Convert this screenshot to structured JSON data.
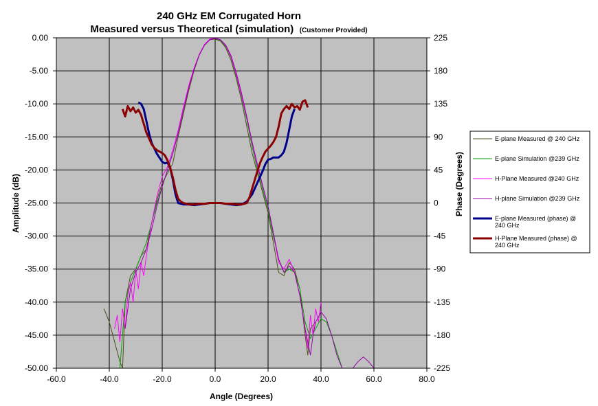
{
  "chart_data": {
    "type": "line",
    "title": "240 GHz EM Corrugated Horn",
    "subtitle_main": "Measured versus Theoretical (simulation)",
    "subtitle_note": "(Customer Provided)",
    "xlabel": "Angle (Degrees)",
    "ylabel": "Amplitude (dB)",
    "y2label": "Phase (Degrees)",
    "xlim": [
      -60,
      80
    ],
    "ylim": [
      -50,
      0
    ],
    "y2lim": [
      -225,
      225
    ],
    "x_ticks": [
      "-60.0",
      "-40.0",
      "-20.0",
      "0.0",
      "20.0",
      "40.0",
      "60.0",
      "80.0"
    ],
    "y_ticks": [
      "0.00",
      "-5.00",
      "-10.00",
      "-15.00",
      "-20.00",
      "-25.00",
      "-30.00",
      "-35.00",
      "-40.00",
      "-45.00",
      "-50.00"
    ],
    "y2_ticks": [
      "225",
      "180",
      "135",
      "90",
      "45",
      "0",
      "-45",
      "-90",
      "-135",
      "-180",
      "-225"
    ],
    "grid": true,
    "plot_bg": "#c0c0c0",
    "legend_position": "right",
    "series": [
      {
        "name": "E-plane Measured @ 240 GHz",
        "axis": "left",
        "color": "#4d4d1a",
        "width": 1,
        "x": [
          -42,
          -40,
          -38,
          -36,
          -35,
          -34,
          -32,
          -30,
          -28,
          -26,
          -24,
          -22,
          -20,
          -18,
          -16,
          -14,
          -12,
          -10,
          -8,
          -6,
          -4,
          -2,
          0,
          2,
          4,
          6,
          8,
          10,
          12,
          14,
          16,
          18,
          20,
          22,
          24,
          26,
          28,
          30,
          32,
          34,
          35,
          36,
          38
        ],
        "y": [
          -41,
          -43,
          -46,
          -49,
          -50,
          -40,
          -36,
          -35,
          -33,
          -32,
          -28,
          -24.5,
          -22,
          -20.5,
          -19,
          -15,
          -11.5,
          -8,
          -5,
          -2.6,
          -1,
          -0.3,
          -0.2,
          -0.5,
          -1.5,
          -3.4,
          -6.2,
          -9.5,
          -13.5,
          -17.5,
          -20.5,
          -23.5,
          -26.5,
          -31,
          -35.5,
          -36,
          -34,
          -35,
          -38,
          -45,
          -48,
          -44,
          -43
        ]
      },
      {
        "name": "E-plane Simulation @239 GHz",
        "axis": "left",
        "color": "#00a000",
        "width": 1,
        "x": [
          -36,
          -34,
          -32,
          -30,
          -28,
          -26,
          -24,
          -22,
          -20,
          -18,
          -16,
          -14,
          -12,
          -10,
          -8,
          -6,
          -4,
          -2,
          0,
          2,
          4,
          6,
          8,
          10,
          12,
          14,
          16,
          18,
          20,
          22,
          24,
          26,
          28,
          30,
          32,
          34,
          36,
          38,
          40,
          42,
          44,
          46,
          48
        ],
        "y": [
          -50,
          -40,
          -37,
          -35,
          -33,
          -31,
          -28,
          -25,
          -22.5,
          -20,
          -17.5,
          -14.5,
          -11,
          -7.5,
          -4.8,
          -2.6,
          -1.1,
          -0.3,
          -0.1,
          -0.4,
          -1.3,
          -3,
          -5.8,
          -9,
          -12.5,
          -16.5,
          -20,
          -23,
          -26,
          -30,
          -33.5,
          -35.5,
          -35,
          -35.5,
          -38,
          -43,
          -45.5,
          -44,
          -42.5,
          -43,
          -45,
          -47.5,
          -50
        ]
      },
      {
        "name": "H-Plane Measured @240 GHz",
        "axis": "left",
        "color": "#ff00ff",
        "width": 1,
        "x": [
          -38,
          -37,
          -36,
          -35,
          -34,
          -33,
          -32,
          -31,
          -30,
          -29,
          -28,
          -27,
          -26,
          -24,
          -22,
          -20,
          -18,
          -16,
          -14,
          -12,
          -10,
          -8,
          -6,
          -4,
          -2,
          0,
          2,
          4,
          6,
          8,
          10,
          12,
          14,
          16,
          18,
          20,
          22,
          24,
          26,
          28,
          30,
          32,
          34,
          35,
          36,
          37,
          38,
          39,
          40
        ],
        "y": [
          -44,
          -42,
          -46,
          -41,
          -44,
          -39,
          -37,
          -40,
          -35,
          -38,
          -34,
          -36,
          -33,
          -28,
          -24,
          -21,
          -19.5,
          -17,
          -14,
          -10.5,
          -7.3,
          -4.6,
          -2.5,
          -1,
          -0.2,
          0,
          -0.3,
          -1.2,
          -2.9,
          -5.6,
          -8.8,
          -12.2,
          -16,
          -19.5,
          -22.5,
          -25.5,
          -29.5,
          -34,
          -35,
          -33.5,
          -35.5,
          -39,
          -44,
          -47,
          -42,
          -45,
          -41,
          -43,
          -40
        ]
      },
      {
        "name": "H-plane Simulation @239 GHz",
        "axis": "left",
        "color": "#9900aa",
        "width": 1,
        "x": [
          -34,
          -32,
          -30,
          -28,
          -26,
          -24,
          -22,
          -20,
          -18,
          -16,
          -14,
          -12,
          -10,
          -8,
          -6,
          -4,
          -2,
          0,
          2,
          4,
          6,
          8,
          10,
          12,
          14,
          16,
          18,
          20,
          22,
          24,
          26,
          28,
          30,
          32,
          34,
          36,
          37,
          38,
          40,
          42,
          44,
          46,
          48,
          50,
          52,
          54,
          56,
          58,
          60
        ],
        "y": [
          -44,
          -38,
          -35.5,
          -34,
          -32,
          -29,
          -25.5,
          -22.5,
          -20,
          -17.5,
          -14.5,
          -11,
          -7.6,
          -4.8,
          -2.6,
          -1.1,
          -0.3,
          -0.1,
          -0.3,
          -1.1,
          -2.7,
          -5.3,
          -8.4,
          -12,
          -15.8,
          -19.2,
          -22.4,
          -25.5,
          -29.5,
          -33.5,
          -35.5,
          -34.5,
          -35.5,
          -39,
          -44,
          -48,
          -45,
          -43,
          -41.5,
          -42.5,
          -45,
          -48,
          -50,
          -50,
          -50,
          -49,
          -48.3,
          -49,
          -50
        ]
      },
      {
        "name": "E-plane Measured (phase) @ 240 GHz",
        "axis": "right",
        "color": "#00008b",
        "width": 3,
        "x": [
          -29,
          -28,
          -27,
          -26,
          -25,
          -24,
          -22,
          -20,
          -19,
          -18,
          -17,
          -16,
          -15,
          -14,
          -12,
          -10,
          -8,
          -6,
          -4,
          -2,
          0,
          2,
          4,
          6,
          8,
          10,
          12,
          14,
          16,
          18,
          19,
          20,
          21,
          22,
          24,
          25,
          26,
          27,
          28,
          29,
          30
        ],
        "y": [
          137,
          135,
          128,
          112,
          95,
          82,
          67,
          56,
          54,
          55,
          48,
          32,
          12,
          0,
          -2,
          -2,
          -3,
          -2,
          -1,
          0,
          0,
          0,
          -1,
          -2,
          -3,
          -2,
          2,
          12,
          28,
          44,
          53,
          59,
          60,
          62,
          62,
          65,
          70,
          82,
          100,
          118,
          128
        ]
      },
      {
        "name": "H-Plane Measured (phase) @ 240 GHz",
        "axis": "right",
        "color": "#8b0000",
        "width": 3,
        "x": [
          -35,
          -34,
          -33,
          -32,
          -31,
          -30,
          -29,
          -28,
          -27,
          -26,
          -25,
          -24,
          -23,
          -22,
          -21,
          -20,
          -19,
          -18,
          -17,
          -16,
          -15,
          -14,
          -13,
          -12,
          -10,
          -8,
          -6,
          -4,
          -2,
          0,
          2,
          4,
          6,
          8,
          10,
          12,
          13,
          14,
          15,
          16,
          17,
          18,
          19,
          20,
          21,
          22,
          23,
          24,
          25,
          26,
          27,
          28,
          29,
          30,
          31,
          32,
          33,
          34,
          35
        ],
        "y": [
          128,
          118,
          132,
          125,
          130,
          123,
          127,
          120,
          108,
          96,
          88,
          80,
          75,
          72,
          70,
          68,
          65,
          58,
          48,
          35,
          18,
          6,
          2,
          0,
          -2,
          -2,
          -1,
          -1,
          0,
          0,
          0,
          -1,
          -1,
          -2,
          -2,
          0,
          8,
          20,
          32,
          44,
          55,
          63,
          70,
          74,
          78,
          83,
          90,
          104,
          122,
          128,
          132,
          128,
          135,
          130,
          132,
          127,
          138,
          140,
          130
        ]
      }
    ]
  }
}
